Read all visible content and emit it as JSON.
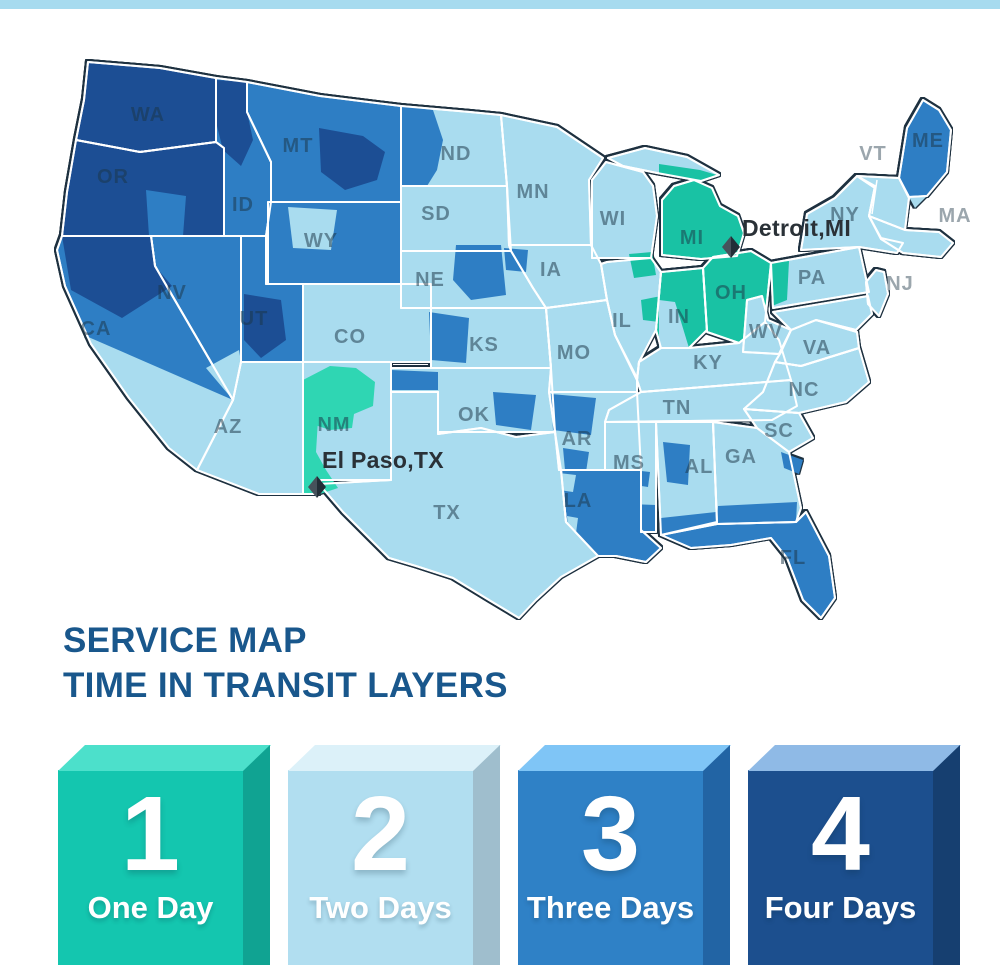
{
  "top_bar": {
    "color": "#a7dbef"
  },
  "title": {
    "line1": "SERVICE MAP",
    "line2": "TIME IN TRANSIT LAYERS",
    "color": "#19578c"
  },
  "zones": {
    "1": {
      "name": "One Day",
      "digit": "1",
      "map_color": "#19c2a4",
      "alt_map_color": "#2fd6b3",
      "box_face": "#14c6af",
      "box_top": "#4ce0cb",
      "box_side": "#10a392",
      "text_color": "#ffffff"
    },
    "2": {
      "name": "Two Days",
      "digit": "2",
      "map_color": "#a9dcef",
      "alt_map_color": "#a9dcef",
      "box_face": "#b1def0",
      "box_top": "#dcf1f9",
      "box_side": "#9fbecd",
      "text_color": "#ffffff"
    },
    "3": {
      "name": "Three Days",
      "digit": "3",
      "map_color": "#2e7ec4",
      "alt_map_color": "#2e7ec4",
      "box_face": "#2f81c6",
      "box_top": "#7fc5f6",
      "box_side": "#2264a4",
      "text_color": "#ffffff"
    },
    "4": {
      "name": "Four Days",
      "digit": "4",
      "map_color": "#1c4e94",
      "alt_map_color": "#1c4e94",
      "box_face": "#1c4f8e",
      "box_top": "#8fbae6",
      "box_side": "#163f70",
      "text_color": "#ffffff"
    }
  },
  "legend": [
    {
      "zone": "1",
      "digit": "1",
      "label": "One Day"
    },
    {
      "zone": "2",
      "digit": "2",
      "label": "Two Days"
    },
    {
      "zone": "3",
      "digit": "3",
      "label": "Three Days"
    },
    {
      "zone": "4",
      "digit": "4",
      "label": "Four Days"
    }
  ],
  "markers": [
    {
      "id": "detroit",
      "label": "Detroit,MI"
    },
    {
      "id": "elpaso",
      "label": "El Paso,TX"
    }
  ],
  "map": {
    "background": "#ffffff",
    "outline_color": "#1e3140",
    "border_color": "#ffffff",
    "label_color": "rgba(27,53,70,0.52)",
    "outside_label_color": "#9ba6ad",
    "states": [
      {
        "code": "WA",
        "label": "WA",
        "zone": 4
      },
      {
        "code": "OR",
        "label": "OR",
        "zone": 4
      },
      {
        "code": "ID",
        "label": "ID",
        "zone": 3
      },
      {
        "code": "MT",
        "label": "MT",
        "zone": 3
      },
      {
        "code": "WY",
        "label": "WY",
        "zone": 3
      },
      {
        "code": "NV",
        "label": "NV",
        "zone": 3
      },
      {
        "code": "UT",
        "label": "UT",
        "zone": 3
      },
      {
        "code": "CA",
        "label": "CA",
        "zone": 3
      },
      {
        "code": "AZ",
        "label": "AZ",
        "zone": 2
      },
      {
        "code": "NM",
        "label": "NM",
        "zone": 2
      },
      {
        "code": "CO",
        "label": "CO",
        "zone": 2
      },
      {
        "code": "ND",
        "label": "ND",
        "zone": 2
      },
      {
        "code": "SD",
        "label": "SD",
        "zone": 2
      },
      {
        "code": "NE",
        "label": "NE",
        "zone": 2
      },
      {
        "code": "KS",
        "label": "KS",
        "zone": 2
      },
      {
        "code": "OK",
        "label": "OK",
        "zone": 2
      },
      {
        "code": "TX",
        "label": "TX",
        "zone": 2
      },
      {
        "code": "MN",
        "label": "MN",
        "zone": 2
      },
      {
        "code": "IA",
        "label": "IA",
        "zone": 2
      },
      {
        "code": "MO",
        "label": "MO",
        "zone": 2
      },
      {
        "code": "AR",
        "label": "AR",
        "zone": 2
      },
      {
        "code": "LA",
        "label": "LA",
        "zone": 3
      },
      {
        "code": "WI",
        "label": "WI",
        "zone": 2
      },
      {
        "code": "IL",
        "label": "IL",
        "zone": 2
      },
      {
        "code": "MI",
        "label": "MI",
        "zone": 1
      },
      {
        "code": "MI_UP",
        "label": "",
        "zone": 2
      },
      {
        "code": "IN",
        "label": "IN",
        "zone": 1
      },
      {
        "code": "OH",
        "label": "OH",
        "zone": 1
      },
      {
        "code": "KY",
        "label": "KY",
        "zone": 2
      },
      {
        "code": "TN",
        "label": "TN",
        "zone": 2
      },
      {
        "code": "MS",
        "label": "MS",
        "zone": 2
      },
      {
        "code": "AL",
        "label": "AL",
        "zone": 2
      },
      {
        "code": "GA",
        "label": "GA",
        "zone": 2
      },
      {
        "code": "FL",
        "label": "FL",
        "zone": 3
      },
      {
        "code": "SC",
        "label": "SC",
        "zone": 2
      },
      {
        "code": "NC",
        "label": "NC",
        "zone": 2
      },
      {
        "code": "VA",
        "label": "VA",
        "zone": 2
      },
      {
        "code": "WV",
        "label": "WV",
        "zone": 2
      },
      {
        "code": "PA",
        "label": "PA",
        "zone": 2
      },
      {
        "code": "MD",
        "label": "",
        "zone": 2
      },
      {
        "code": "NY",
        "label": "NY",
        "zone": 2
      },
      {
        "code": "NJ",
        "label": "",
        "zone": 2
      },
      {
        "code": "VTNH",
        "label": "",
        "zone": 2
      },
      {
        "code": "MACTRI",
        "label": "",
        "zone": 2
      },
      {
        "code": "ME",
        "label": "ME",
        "zone": 3
      }
    ],
    "patches": [
      {
        "id": "OR_S",
        "state": "OR",
        "zone": 3
      },
      {
        "id": "CA_N",
        "state": "CA",
        "zone": 4
      },
      {
        "id": "CA_S",
        "state": "CA",
        "zone": 2
      },
      {
        "id": "NV_S",
        "state": "NV",
        "zone": 2
      },
      {
        "id": "ID_N",
        "state": "ID",
        "zone": 4
      },
      {
        "id": "MT_C",
        "state": "MT",
        "zone": 4
      },
      {
        "id": "WY_W",
        "state": "WY",
        "zone": 2
      },
      {
        "id": "UT_C",
        "state": "UT",
        "zone": 4
      },
      {
        "id": "ND_W",
        "state": "ND",
        "zone": 3
      },
      {
        "id": "NE_E",
        "state": "NE",
        "zone": 3
      },
      {
        "id": "IA_W",
        "state": "IA",
        "zone": 3
      },
      {
        "id": "KS_C",
        "state": "KS",
        "zone": 3
      },
      {
        "id": "OK_PH",
        "state": "OK",
        "zone": 3
      },
      {
        "id": "OK_NE",
        "state": "OK",
        "zone": 3
      },
      {
        "id": "AR_NW",
        "state": "AR",
        "zone": 3
      },
      {
        "id": "AR_C",
        "state": "AR",
        "zone": 3
      },
      {
        "id": "LA_NW",
        "state": "LA",
        "zone": 2
      },
      {
        "id": "LA_W",
        "state": "LA",
        "zone": 2
      },
      {
        "id": "MS_S",
        "state": "MS",
        "zone": 3
      },
      {
        "id": "MS_C",
        "state": "MS",
        "zone": 3
      },
      {
        "id": "AL_S",
        "state": "AL",
        "zone": 3
      },
      {
        "id": "AL_C",
        "state": "AL",
        "zone": 3
      },
      {
        "id": "GA_S",
        "state": "GA",
        "zone": 3
      },
      {
        "id": "GA_E",
        "state": "GA",
        "zone": 3
      },
      {
        "id": "NM_N",
        "state": "NM",
        "zone": 1,
        "alt": true
      },
      {
        "id": "NM_S",
        "state": "NM",
        "zone": 1,
        "alt": true
      },
      {
        "id": "IL_NE",
        "state": "IL",
        "zone": 1
      },
      {
        "id": "IL_E",
        "state": "IL",
        "zone": 1
      },
      {
        "id": "IN_SW",
        "state": "IN",
        "zone": 2
      },
      {
        "id": "PA_W",
        "state": "PA",
        "zone": 1
      },
      {
        "id": "MIUP_E",
        "state": "MI_UP",
        "zone": 1
      },
      {
        "id": "ME_S",
        "state": "ME",
        "zone": 2
      }
    ],
    "outside_labels": [
      {
        "id": "VT",
        "text": "VT"
      },
      {
        "id": "MA",
        "text": "MA"
      },
      {
        "id": "NJ",
        "text": "NJ"
      }
    ]
  }
}
